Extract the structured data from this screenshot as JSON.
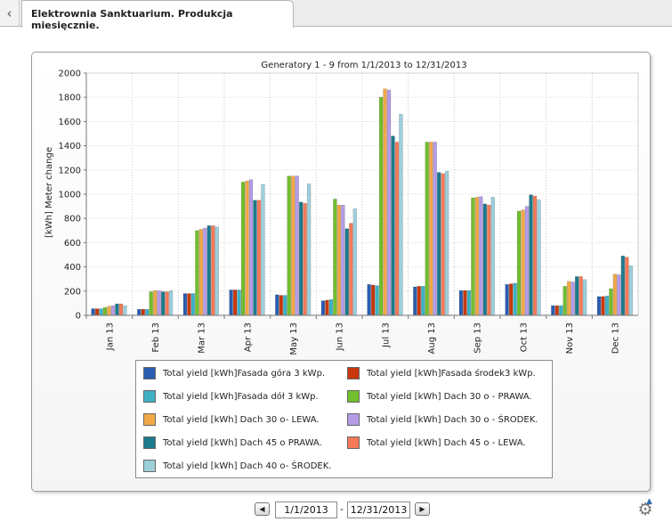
{
  "tab": {
    "title": "Elektrownia Sanktuarium. Produkcja miesięcznie."
  },
  "chart_data": {
    "type": "bar",
    "title": "Generatory 1 - 9 from 1/1/2013 to 12/31/2013",
    "ylabel": "[kWh] Meter change",
    "xlabel": "",
    "ylim": [
      0,
      2000
    ],
    "yticks": [
      0,
      200,
      400,
      600,
      800,
      1000,
      1200,
      1400,
      1600,
      1800,
      2000
    ],
    "grid": true,
    "legend_position": "bottom",
    "categories": [
      "Jan 13",
      "Feb 13",
      "Mar 13",
      "Apr 13",
      "May 13",
      "Jun 13",
      "Jul 13",
      "Aug 13",
      "Sep 13",
      "Oct 13",
      "Nov 13",
      "Dec 13"
    ],
    "series": [
      {
        "name": "Total yield [kWh]Fasada góra 3 kWp.",
        "color": "#2a5db0",
        "values": [
          55,
          50,
          180,
          210,
          170,
          120,
          255,
          235,
          205,
          255,
          80,
          155
        ]
      },
      {
        "name": "Total yield [kWh]Fasada środek3 kWp.",
        "color": "#c8380c",
        "values": [
          55,
          50,
          180,
          210,
          165,
          125,
          250,
          240,
          205,
          260,
          80,
          155
        ]
      },
      {
        "name": "Total yield [kWh]Fasada dół 3 kWp.",
        "color": "#3fb0c4",
        "values": [
          55,
          50,
          180,
          210,
          165,
          130,
          245,
          240,
          205,
          265,
          80,
          160
        ]
      },
      {
        "name": "Total yield [kWh] Dach 30 o - PRAWA.",
        "color": "#72be2e",
        "values": [
          65,
          195,
          700,
          1100,
          1150,
          960,
          1800,
          1430,
          970,
          860,
          240,
          220
        ]
      },
      {
        "name": "Total yield [kWh] Dach 30 o- LEWA.",
        "color": "#f0a848",
        "values": [
          75,
          205,
          710,
          1110,
          1150,
          910,
          1870,
          1430,
          975,
          870,
          280,
          340
        ]
      },
      {
        "name": "Total yield [kWh] Dach 30 o - ŚRODEK.",
        "color": "#b59be6",
        "values": [
          80,
          205,
          720,
          1120,
          1150,
          910,
          1860,
          1430,
          980,
          900,
          275,
          335
        ]
      },
      {
        "name": "Total yield [kWh] Dach 45 o PRAWA.",
        "color": "#1d7a8c",
        "values": [
          95,
          195,
          740,
          950,
          935,
          715,
          1480,
          1180,
          920,
          995,
          320,
          490
        ]
      },
      {
        "name": "Total yield [kWh] Dach 45 o - LEWA.",
        "color": "#f47a5a",
        "values": [
          95,
          195,
          740,
          950,
          925,
          760,
          1430,
          1170,
          910,
          985,
          320,
          480
        ]
      },
      {
        "name": "Total yield [kWh] Dach 40 o- ŚRODEK.",
        "color": "#9dcfdb",
        "values": [
          80,
          205,
          730,
          1080,
          1085,
          880,
          1660,
          1190,
          975,
          955,
          295,
          410
        ]
      }
    ]
  },
  "legend": {
    "items": [
      {
        "label": "Total yield [kWh]Fasada góra 3 kWp.",
        "color": "#2a5db0"
      },
      {
        "label": "Total yield [kWh]Fasada środek3 kWp.",
        "color": "#c8380c"
      },
      {
        "label": "Total yield [kWh]Fasada dół 3 kWp.",
        "color": "#3fb0c4"
      },
      {
        "label": "Total yield [kWh] Dach 30 o - PRAWA.",
        "color": "#72be2e"
      },
      {
        "label": "Total yield [kWh] Dach 30 o- LEWA.",
        "color": "#f0a848"
      },
      {
        "label": "Total yield [kWh] Dach 30 o - ŚRODEK.",
        "color": "#b59be6"
      },
      {
        "label": "Total yield [kWh] Dach 45 o PRAWA.",
        "color": "#1d7a8c"
      },
      {
        "label": "Total yield [kWh] Dach 45 o - LEWA.",
        "color": "#f47a5a"
      },
      {
        "label": "Total yield [kWh] Dach 40 o- ŚRODEK.",
        "color": "#9dcfdb"
      }
    ]
  },
  "date_range": {
    "start": "1/1/2013",
    "separator": "-",
    "end": "12/31/2013"
  },
  "icons": {
    "back": "chevron-left-icon",
    "prev": "triangle-left-icon",
    "next": "triangle-right-icon",
    "settings": "gear-icon"
  }
}
